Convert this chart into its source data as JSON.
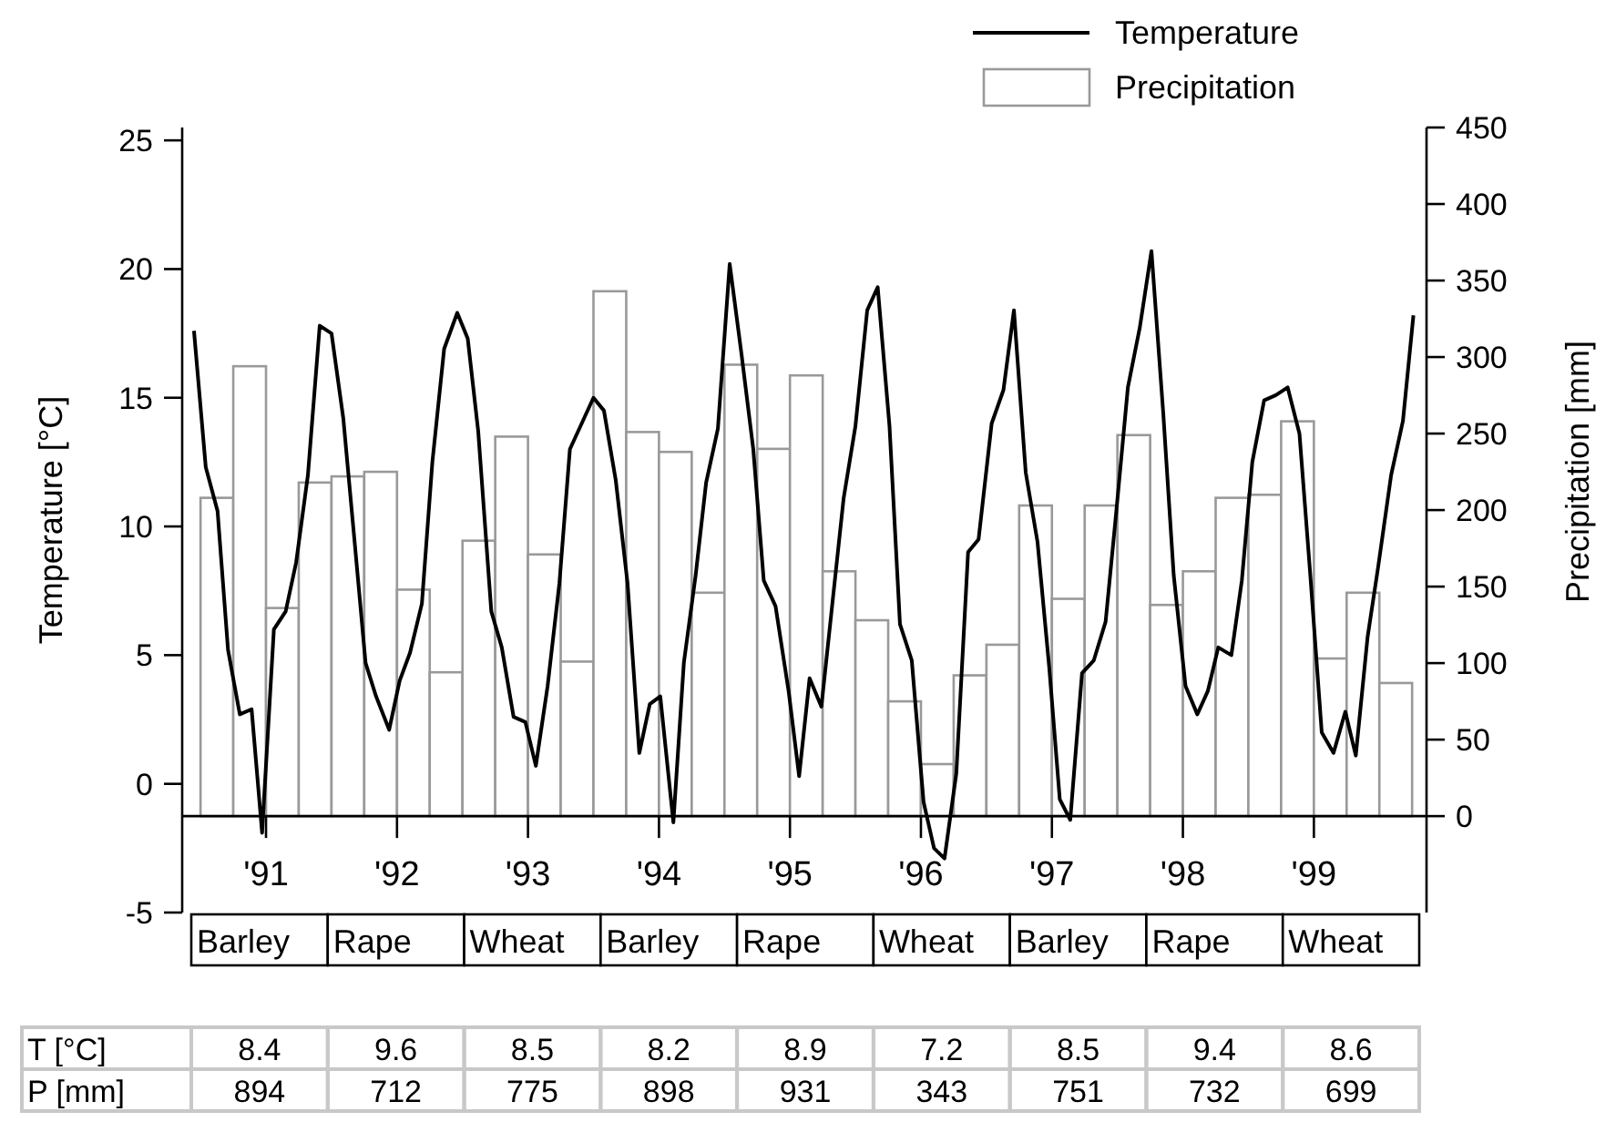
{
  "chart_data": {
    "type": "line",
    "ylabel": "Temperature [°C]",
    "y2label": "Precipitation [mm]",
    "xlim": [
      1990.36,
      1999.86
    ],
    "xticks": [
      {
        "value": 1991,
        "label": "'91"
      },
      {
        "value": 1992,
        "label": "'92"
      },
      {
        "value": 1993,
        "label": "'93"
      },
      {
        "value": 1994,
        "label": "'94"
      },
      {
        "value": 1995,
        "label": "'95"
      },
      {
        "value": 1996,
        "label": "'96"
      },
      {
        "value": 1997,
        "label": "'97"
      },
      {
        "value": 1998,
        "label": "'98"
      },
      {
        "value": 1999,
        "label": "'99"
      }
    ],
    "ylim": [
      -5,
      25.5
    ],
    "yticks": [
      -5,
      0,
      5,
      10,
      15,
      20,
      25
    ],
    "y2lim": [
      -63,
      450
    ],
    "y2ticks": [
      0,
      50,
      100,
      150,
      200,
      250,
      300,
      350,
      400,
      450
    ],
    "legend": "top right",
    "series": [
      {
        "name": "Precipitation",
        "type": "bar",
        "axis": "y2",
        "color": "#999999",
        "x": [
          1990.625,
          1990.875,
          1991.125,
          1991.375,
          1991.625,
          1991.875,
          1992.125,
          1992.375,
          1992.625,
          1992.875,
          1993.125,
          1993.375,
          1993.625,
          1993.875,
          1994.125,
          1994.375,
          1994.625,
          1994.875,
          1995.125,
          1995.375,
          1995.625,
          1995.875,
          1996.125,
          1996.375,
          1996.625,
          1996.875,
          1997.125,
          1997.375,
          1997.625,
          1997.875,
          1998.125,
          1998.375,
          1998.625,
          1998.875,
          1999.125,
          1999.375,
          1999.625
        ],
        "values": [
          208,
          294,
          136,
          218,
          222,
          225,
          148,
          94,
          180,
          248,
          171,
          101,
          343,
          251,
          238,
          146,
          295,
          240,
          288,
          160,
          128,
          75,
          34,
          92,
          112,
          203,
          142,
          203,
          249,
          138,
          160,
          208,
          210,
          258,
          103,
          146,
          87
        ]
      },
      {
        "name": "Temperature",
        "color": "#000000",
        "x": [
          1990.45,
          1990.54,
          1990.63,
          1990.71,
          1990.8,
          1990.89,
          1990.97,
          1991.06,
          1991.15,
          1991.23,
          1991.32,
          1991.41,
          1991.5,
          1991.59,
          1991.68,
          1991.76,
          1991.84,
          1991.94,
          1992.02,
          1992.1,
          1992.19,
          1992.27,
          1992.36,
          1992.46,
          1992.54,
          1992.62,
          1992.72,
          1992.8,
          1992.89,
          1992.98,
          1993.06,
          1993.15,
          1993.24,
          1993.32,
          1993.41,
          1993.5,
          1993.58,
          1993.67,
          1993.76,
          1993.85,
          1993.93,
          1994.01,
          1994.11,
          1994.19,
          1994.28,
          1994.36,
          1994.45,
          1994.54,
          1994.63,
          1994.72,
          1994.8,
          1994.89,
          1994.99,
          1995.07,
          1995.15,
          1995.24,
          1995.33,
          1995.41,
          1995.5,
          1995.59,
          1995.67,
          1995.76,
          1995.84,
          1995.93,
          1996.02,
          1996.1,
          1996.18,
          1996.27,
          1996.36,
          1996.44,
          1996.54,
          1996.63,
          1996.71,
          1996.8,
          1996.89,
          1996.98,
          1997.06,
          1997.14,
          1997.23,
          1997.32,
          1997.41,
          1997.49,
          1997.58,
          1997.67,
          1997.76,
          1997.85,
          1997.93,
          1998.02,
          1998.11,
          1998.19,
          1998.27,
          1998.37,
          1998.45,
          1998.53,
          1998.62,
          1998.71,
          1998.8,
          1998.89,
          1998.97,
          1999.06,
          1999.15,
          1999.24,
          1999.32,
          1999.41,
          1999.49,
          1999.59,
          1999.68,
          1999.76
        ],
        "values": [
          17.6,
          12.3,
          10.6,
          5.2,
          2.7,
          2.9,
          -1.9,
          6.0,
          6.7,
          8.6,
          12.0,
          17.8,
          17.5,
          14.2,
          9.2,
          4.7,
          3.4,
          2.1,
          4.0,
          5.1,
          7.0,
          12.5,
          16.9,
          18.3,
          17.3,
          13.7,
          6.7,
          5.3,
          2.6,
          2.4,
          0.7,
          3.8,
          7.8,
          13.0,
          14.0,
          15.0,
          14.5,
          11.8,
          7.8,
          1.2,
          3.1,
          3.4,
          -1.5,
          4.7,
          8.1,
          11.7,
          13.8,
          20.2,
          16.7,
          13.0,
          7.9,
          6.9,
          3.6,
          0.3,
          4.1,
          3.0,
          7.3,
          11.1,
          13.9,
          18.4,
          19.3,
          13.9,
          6.2,
          4.8,
          -0.7,
          -2.5,
          -2.9,
          0.4,
          9.0,
          9.5,
          14.0,
          15.3,
          18.4,
          12.1,
          9.4,
          4.5,
          -0.6,
          -1.4,
          4.3,
          4.8,
          6.3,
          10.5,
          15.4,
          17.7,
          20.7,
          14.4,
          8.1,
          3.8,
          2.7,
          3.6,
          5.3,
          5.0,
          7.9,
          12.5,
          14.9,
          15.1,
          15.4,
          13.6,
          8.3,
          2.0,
          1.2,
          2.8,
          1.1,
          5.7,
          8.4,
          12.0,
          14.1,
          18.2
        ]
      }
    ],
    "annotations": [
      "Barley",
      "Rape",
      "Wheat",
      "Barley",
      "Rape",
      "Wheat",
      "Barley",
      "Rape",
      "Wheat",
      "T [°C]",
      "8.4",
      "9.6",
      "8.5",
      "8.2",
      "8.9",
      "7.2",
      "8.5",
      "9.4",
      "8.6",
      "P [mm]",
      "894",
      "712",
      "775",
      "898",
      "931",
      "343",
      "751",
      "732",
      "699"
    ]
  }
}
